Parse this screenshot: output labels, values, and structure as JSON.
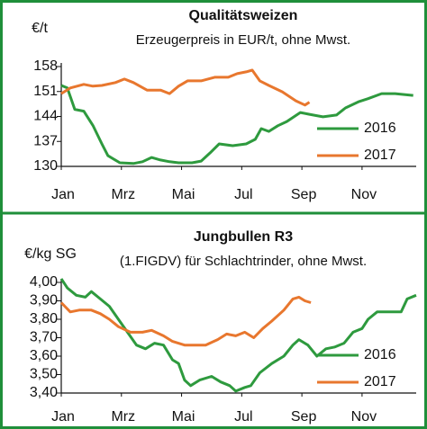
{
  "chart_data": [
    {
      "type": "line",
      "title": "Qualitätsweizen",
      "subtitle": "Erzeugerpreis in EUR/t, ohne Mwst.",
      "y_label": "€/t",
      "xlim": [
        0,
        11.8
      ],
      "xticks": [
        {
          "value": 0,
          "label": "Jan"
        },
        {
          "value": 2,
          "label": "Mrz"
        },
        {
          "value": 4,
          "label": "Mai"
        },
        {
          "value": 6,
          "label": "Jul"
        },
        {
          "value": 8,
          "label": "Sep"
        },
        {
          "value": 10,
          "label": "Nov"
        }
      ],
      "ylim": [
        130,
        158
      ],
      "yticks": [
        130,
        137,
        144,
        151,
        158
      ],
      "grid": false,
      "legend": "lower right",
      "series": [
        {
          "name": "2016",
          "color": "#2e9a3e",
          "x": [
            0,
            0.2,
            0.45,
            0.75,
            1.05,
            1.35,
            1.55,
            1.95,
            2.4,
            2.7,
            3.0,
            3.3,
            3.6,
            3.9,
            4.35,
            4.65,
            4.95,
            5.25,
            5.7,
            6.15,
            6.45,
            6.65,
            6.9,
            7.2,
            7.5,
            7.95,
            8.25,
            8.7,
            9.15,
            9.45,
            9.9,
            10.2,
            10.65,
            11.1,
            11.7
          ],
          "values": [
            152.7,
            152,
            146,
            145.5,
            141.5,
            136.3,
            133,
            131,
            130.8,
            131.3,
            132.5,
            131.8,
            131.3,
            131,
            131,
            131.5,
            133.8,
            136.3,
            135.8,
            136.3,
            137.6,
            140.6,
            139.8,
            141.4,
            142.6,
            145.1,
            144.6,
            143.9,
            144.4,
            146.4,
            148.2,
            149,
            150.4,
            150.4,
            149.9
          ]
        },
        {
          "name": "2017",
          "color": "#e8772e",
          "x": [
            0,
            0.3,
            0.75,
            1.05,
            1.35,
            1.8,
            2.1,
            2.4,
            2.85,
            3.3,
            3.6,
            3.9,
            4.2,
            4.65,
            5.1,
            5.55,
            5.85,
            6.15,
            6.35,
            6.6,
            6.9,
            7.35,
            7.8,
            8.1,
            8.25
          ],
          "values": [
            150.4,
            152,
            153,
            152.5,
            152.7,
            153.5,
            154.5,
            153.5,
            151.4,
            151.4,
            150.4,
            152.5,
            154,
            154,
            155,
            155,
            156,
            156.5,
            157,
            154,
            152.7,
            150.9,
            148.4,
            147.2,
            148
          ]
        }
      ]
    },
    {
      "type": "line",
      "title": "Jungbullen R3",
      "subtitle": "(1.FIGDV) für Schlachtrinder, ohne Mwst.",
      "y_label": "€/kg SG",
      "xlim": [
        0,
        11.8
      ],
      "xticks": [
        {
          "value": 0,
          "label": "Jan"
        },
        {
          "value": 2,
          "label": "Mrz"
        },
        {
          "value": 4,
          "label": "Mai"
        },
        {
          "value": 6,
          "label": "Jul"
        },
        {
          "value": 8,
          "label": "Sep"
        },
        {
          "value": 10,
          "label": "Nov"
        }
      ],
      "ylim": [
        3.4,
        4.0
      ],
      "yticks": [
        {
          "value": 3.4,
          "label": "3,40"
        },
        {
          "value": 3.5,
          "label": "3,50"
        },
        {
          "value": 3.6,
          "label": "3,60"
        },
        {
          "value": 3.7,
          "label": "3,70"
        },
        {
          "value": 3.8,
          "label": "3,80"
        },
        {
          "value": 3.9,
          "label": "3,90"
        },
        {
          "value": 4.0,
          "label": "4,00"
        }
      ],
      "grid": false,
      "legend": "lower right",
      "series": [
        {
          "name": "2016",
          "color": "#2e9a3e",
          "x": [
            0,
            0.2,
            0.5,
            0.8,
            1.0,
            1.3,
            1.6,
            1.9,
            2.2,
            2.5,
            2.8,
            3.1,
            3.4,
            3.7,
            3.9,
            4.1,
            4.3,
            4.6,
            5.0,
            5.3,
            5.6,
            5.8,
            6.1,
            6.3,
            6.6,
            7.0,
            7.4,
            7.7,
            7.9,
            8.2,
            8.5,
            8.8,
            9.1,
            9.4,
            9.7,
            10.0,
            10.2,
            10.5,
            11.0,
            11.3,
            11.5,
            11.8
          ],
          "values": [
            4.02,
            3.97,
            3.93,
            3.92,
            3.95,
            3.91,
            3.87,
            3.8,
            3.73,
            3.66,
            3.64,
            3.67,
            3.66,
            3.58,
            3.56,
            3.47,
            3.44,
            3.47,
            3.49,
            3.46,
            3.44,
            3.41,
            3.43,
            3.44,
            3.51,
            3.56,
            3.6,
            3.66,
            3.69,
            3.66,
            3.6,
            3.64,
            3.65,
            3.67,
            3.73,
            3.75,
            3.8,
            3.84,
            3.84,
            3.84,
            3.91,
            3.93
          ]
        },
        {
          "name": "2017",
          "color": "#e8772e",
          "x": [
            0,
            0.3,
            0.6,
            1.0,
            1.3,
            1.6,
            1.9,
            2.3,
            2.7,
            3.0,
            3.4,
            3.7,
            4.1,
            4.5,
            4.8,
            5.2,
            5.5,
            5.8,
            6.1,
            6.4,
            6.7,
            7.0,
            7.4,
            7.7,
            7.9,
            8.1,
            8.3
          ],
          "values": [
            3.89,
            3.84,
            3.85,
            3.85,
            3.83,
            3.8,
            3.76,
            3.73,
            3.73,
            3.74,
            3.71,
            3.68,
            3.66,
            3.66,
            3.66,
            3.69,
            3.72,
            3.71,
            3.73,
            3.7,
            3.75,
            3.79,
            3.85,
            3.91,
            3.92,
            3.9,
            3.89
          ]
        }
      ]
    }
  ]
}
